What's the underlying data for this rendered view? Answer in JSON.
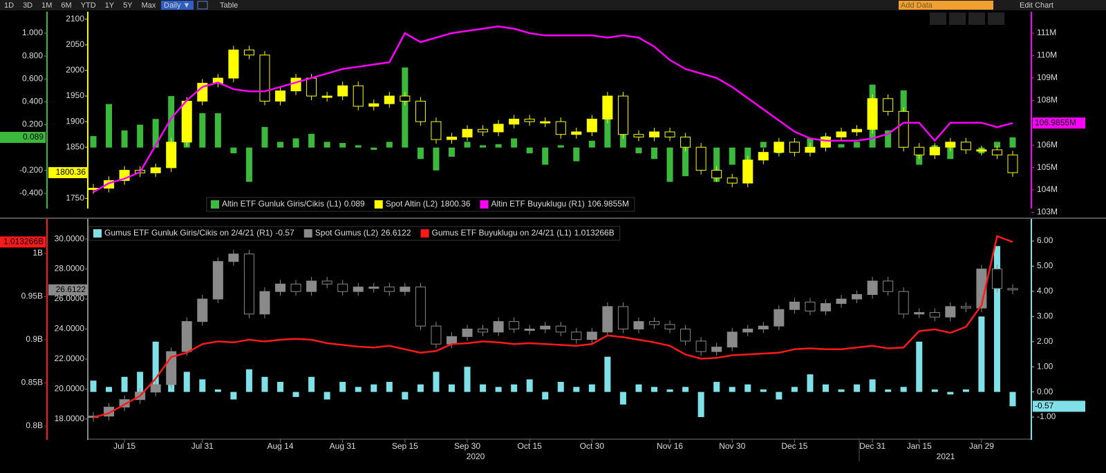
{
  "toolbar": {
    "ranges": [
      "1D",
      "3D",
      "1M",
      "6M",
      "YTD",
      "1Y",
      "5Y",
      "Max"
    ],
    "period": "Daily ▼",
    "table": "Table",
    "add_data": "Add Data",
    "edit": "Edit Chart"
  },
  "chart_data": [
    {
      "type": "combo",
      "ylim": [
        -0.521,
        1.139
      ],
      "yticks": [
        {
          "value": 1,
          "label": "1.000"
        },
        {
          "value": 0.8,
          "label": "0.800"
        },
        {
          "value": 0.6,
          "label": "0.600"
        },
        {
          "value": 0.4,
          "label": "0.400"
        },
        {
          "value": 0.2,
          "label": "0.200"
        },
        {
          "value": -0.2,
          "label": "-0.200"
        },
        {
          "value": -0.4,
          "label": "-0.400"
        }
      ],
      "y3lim": [
        1733,
        2103.8
      ],
      "y3ticks": [
        1750,
        1800,
        1850,
        1900,
        1950,
        2000,
        2050,
        2100
      ],
      "y2lim": [
        103.23,
        111.71
      ],
      "y2ticks": [
        {
          "value": 103,
          "label": "103M"
        },
        {
          "value": 104,
          "label": "104M"
        },
        {
          "value": 105,
          "label": "105M"
        },
        {
          "value": 106,
          "label": "106M"
        },
        {
          "value": 107,
          "label": "107M"
        },
        {
          "value": 108,
          "label": "108M"
        },
        {
          "value": 109,
          "label": "109M"
        },
        {
          "value": 110,
          "label": "110M"
        },
        {
          "value": 111,
          "label": "111M"
        }
      ],
      "series": [
        {
          "name": "Altin ETF Gunluk Giris/Cikis (L1)",
          "type": "bar",
          "axis": "y",
          "color": "#3cb93c",
          "last_label": "0.089",
          "values": [
            0.1,
            0.38,
            0.15,
            0.2,
            0.25,
            0.45,
            0.35,
            0.3,
            0.3,
            -0.05,
            -0.3,
            0.18,
            0.05,
            0.08,
            0.12,
            0.05,
            0.04,
            0.02,
            -0.02,
            0.05,
            0.7,
            -0.1,
            -0.2,
            -0.08,
            0.05,
            0.02,
            0.03,
            0.08,
            -0.05,
            -0.15,
            0.02,
            -0.12,
            0.06,
            0.25,
            0.3,
            -0.05,
            -0.1,
            -0.3,
            -0.25,
            -0.15,
            -0.3,
            -0.15,
            -0.2,
            0.05,
            -0.05,
            0.05,
            0.08,
            0.1,
            0.03,
            0.05,
            0.55,
            0.15,
            0.5,
            -0.15,
            0.02,
            -0.1,
            0.03,
            -0.05,
            0.05,
            0.089
          ]
        },
        {
          "name": "Spot Altin (L2)",
          "type": "candle",
          "axis": "y3",
          "color": "#ffff00",
          "last_label": "1800.36",
          "values": [
            1770,
            1785,
            1805,
            1800,
            1810,
            1860,
            1940,
            1975,
            1985,
            2040,
            2030,
            1940,
            1960,
            1985,
            1950,
            1950,
            1970,
            1930,
            1935,
            1950,
            1940,
            1900,
            1865,
            1870,
            1885,
            1880,
            1895,
            1905,
            1900,
            1900,
            1875,
            1880,
            1905,
            1950,
            1875,
            1870,
            1880,
            1870,
            1850,
            1805,
            1790,
            1780,
            1825,
            1840,
            1860,
            1840,
            1850,
            1870,
            1880,
            1885,
            1945,
            1920,
            1850,
            1835,
            1850,
            1860,
            1845,
            1845,
            1835,
            1800.36
          ]
        },
        {
          "name": "Altin ETF Buyuklugu (R1)",
          "type": "line",
          "axis": "y2",
          "color": "#ff00ff",
          "last_label": "106.9855M",
          "values": [
            103.9,
            104.3,
            104.5,
            104.8,
            106.0,
            107.2,
            108.0,
            108.6,
            108.8,
            108.5,
            108.4,
            108.4,
            108.6,
            108.8,
            109.0,
            109.2,
            109.4,
            109.5,
            109.6,
            109.7,
            111.0,
            110.6,
            110.8,
            111.0,
            111.1,
            111.2,
            111.3,
            111.2,
            111.0,
            110.9,
            110.9,
            110.9,
            110.9,
            110.8,
            110.9,
            110.8,
            110.4,
            109.8,
            109.4,
            109.2,
            109.0,
            108.6,
            108.1,
            107.6,
            107.1,
            106.6,
            106.3,
            106.2,
            106.2,
            106.2,
            106.3,
            106.5,
            107.0,
            107.0,
            106.2,
            107.0,
            107.0,
            107.0,
            106.8,
            106.9855
          ]
        }
      ]
    },
    {
      "type": "combo",
      "categories": [
        null,
        null,
        "Jul 15",
        null,
        null,
        null,
        null,
        "Jul 31",
        null,
        null,
        null,
        null,
        "Aug 14",
        null,
        null,
        null,
        "Aug 31",
        null,
        null,
        null,
        "Sep 15",
        null,
        null,
        null,
        "Sep 30",
        null,
        null,
        null,
        "Oct 15",
        null,
        null,
        null,
        "Oct 30",
        null,
        null,
        null,
        null,
        "Nov 16",
        null,
        null,
        null,
        "Nov 30",
        null,
        null,
        null,
        "Dec 15",
        null,
        null,
        null,
        null,
        "Dec 31",
        null,
        null,
        "Jan 15",
        null,
        null,
        null,
        "Jan 29",
        null,
        null
      ],
      "year_labels": [
        "2020",
        "2021"
      ],
      "ylim": [
        0.7856,
        1.0336
      ],
      "yticks": [
        {
          "value": 0.8,
          "label": "0.8B"
        },
        {
          "value": 0.85,
          "label": "0.85B"
        },
        {
          "value": 0.9,
          "label": "0.9B"
        },
        {
          "value": 0.95,
          "label": "0.95B"
        },
        {
          "value": 1,
          "label": "1B"
        }
      ],
      "y3lim": [
        16.71,
        30.97
      ],
      "y3ticks": [
        {
          "value": 18,
          "label": "18.0000"
        },
        {
          "value": 20,
          "label": "20.0000"
        },
        {
          "value": 22,
          "label": "22.0000"
        },
        {
          "value": 24,
          "label": "24.0000"
        },
        {
          "value": 26,
          "label": "26.0000"
        },
        {
          "value": 28,
          "label": "28.0000"
        },
        {
          "value": 30,
          "label": "30.0000"
        }
      ],
      "y2lim": [
        -1.85,
        6.66
      ],
      "y2ticks": [
        {
          "value": -1,
          "label": "-1.00"
        },
        {
          "value": 0,
          "label": "0.00"
        },
        {
          "value": 1,
          "label": "1.00"
        },
        {
          "value": 2,
          "label": "2.00"
        },
        {
          "value": 3,
          "label": "3.00"
        },
        {
          "value": 4,
          "label": "4.00"
        },
        {
          "value": 5,
          "label": "5.00"
        },
        {
          "value": 6,
          "label": "6.00"
        }
      ],
      "series": [
        {
          "name": "Gumus ETF Gunluk Giris/Cikis on 2/4/21 (R1)",
          "type": "bar",
          "axis": "y2",
          "color": "#7fe0e8",
          "last_label": "-0.57",
          "values": [
            0.45,
            0.2,
            0.6,
            0.8,
            2.0,
            1.1,
            0.8,
            0.5,
            0.1,
            -0.3,
            0.9,
            0.6,
            0.4,
            -0.2,
            0.6,
            -0.3,
            0.4,
            0.2,
            0.3,
            0.4,
            -0.3,
            0.3,
            0.8,
            0.3,
            1.0,
            0.3,
            0.2,
            0.3,
            0.5,
            -0.3,
            0.4,
            0.2,
            0.3,
            1.4,
            -0.5,
            0.3,
            0.2,
            0.1,
            0.2,
            -1.0,
            0.4,
            0.2,
            0.3,
            0.1,
            -0.3,
            0.2,
            0.7,
            0.3,
            0.1,
            0.3,
            0.5,
            0.1,
            0.2,
            2.0,
            0.1,
            -0.1,
            0.1,
            3.0,
            5.8,
            -0.57
          ]
        },
        {
          "name": "Spot Gumus (L2)",
          "type": "candle",
          "axis": "y3",
          "color": "#8a8a8a",
          "last_label": "26.6122",
          "values": [
            18.2,
            18.8,
            19.3,
            19.8,
            20.3,
            22.5,
            24.5,
            26,
            28.5,
            29,
            25,
            26.5,
            27,
            26.5,
            27.2,
            27,
            26.5,
            26.8,
            26.8,
            26.5,
            26.8,
            24.2,
            23.0,
            23.5,
            24,
            23.8,
            24.5,
            24.0,
            24.0,
            24.2,
            23.8,
            23.3,
            23.8,
            25.5,
            24,
            24.5,
            24.3,
            24.0,
            23.2,
            22.5,
            22.8,
            23.8,
            24.0,
            24.2,
            25.3,
            25.8,
            25.2,
            25.7,
            26.0,
            26.3,
            27.2,
            26.5,
            25.0,
            25.1,
            24.8,
            25.5,
            25.4,
            28,
            26.7,
            26.6122
          ]
        },
        {
          "name": "Gumus ETF Buyuklugu on 2/4/21 (L1)",
          "type": "line",
          "axis": "y",
          "color": "#ff1a1a",
          "last_label": "1.013266B",
          "values": [
            0.81,
            0.815,
            0.825,
            0.835,
            0.855,
            0.88,
            0.885,
            0.895,
            0.898,
            0.897,
            0.9,
            0.898,
            0.9,
            0.901,
            0.9,
            0.896,
            0.894,
            0.892,
            0.891,
            0.893,
            0.889,
            0.885,
            0.887,
            0.895,
            0.896,
            0.898,
            0.897,
            0.895,
            0.896,
            0.895,
            0.894,
            0.893,
            0.895,
            0.905,
            0.903,
            0.9,
            0.897,
            0.893,
            0.883,
            0.878,
            0.879,
            0.882,
            0.883,
            0.884,
            0.885,
            0.889,
            0.89,
            0.889,
            0.889,
            0.891,
            0.893,
            0.89,
            0.891,
            0.91,
            0.912,
            0.908,
            0.915,
            0.94,
            1.02,
            1.013266
          ]
        }
      ]
    }
  ]
}
